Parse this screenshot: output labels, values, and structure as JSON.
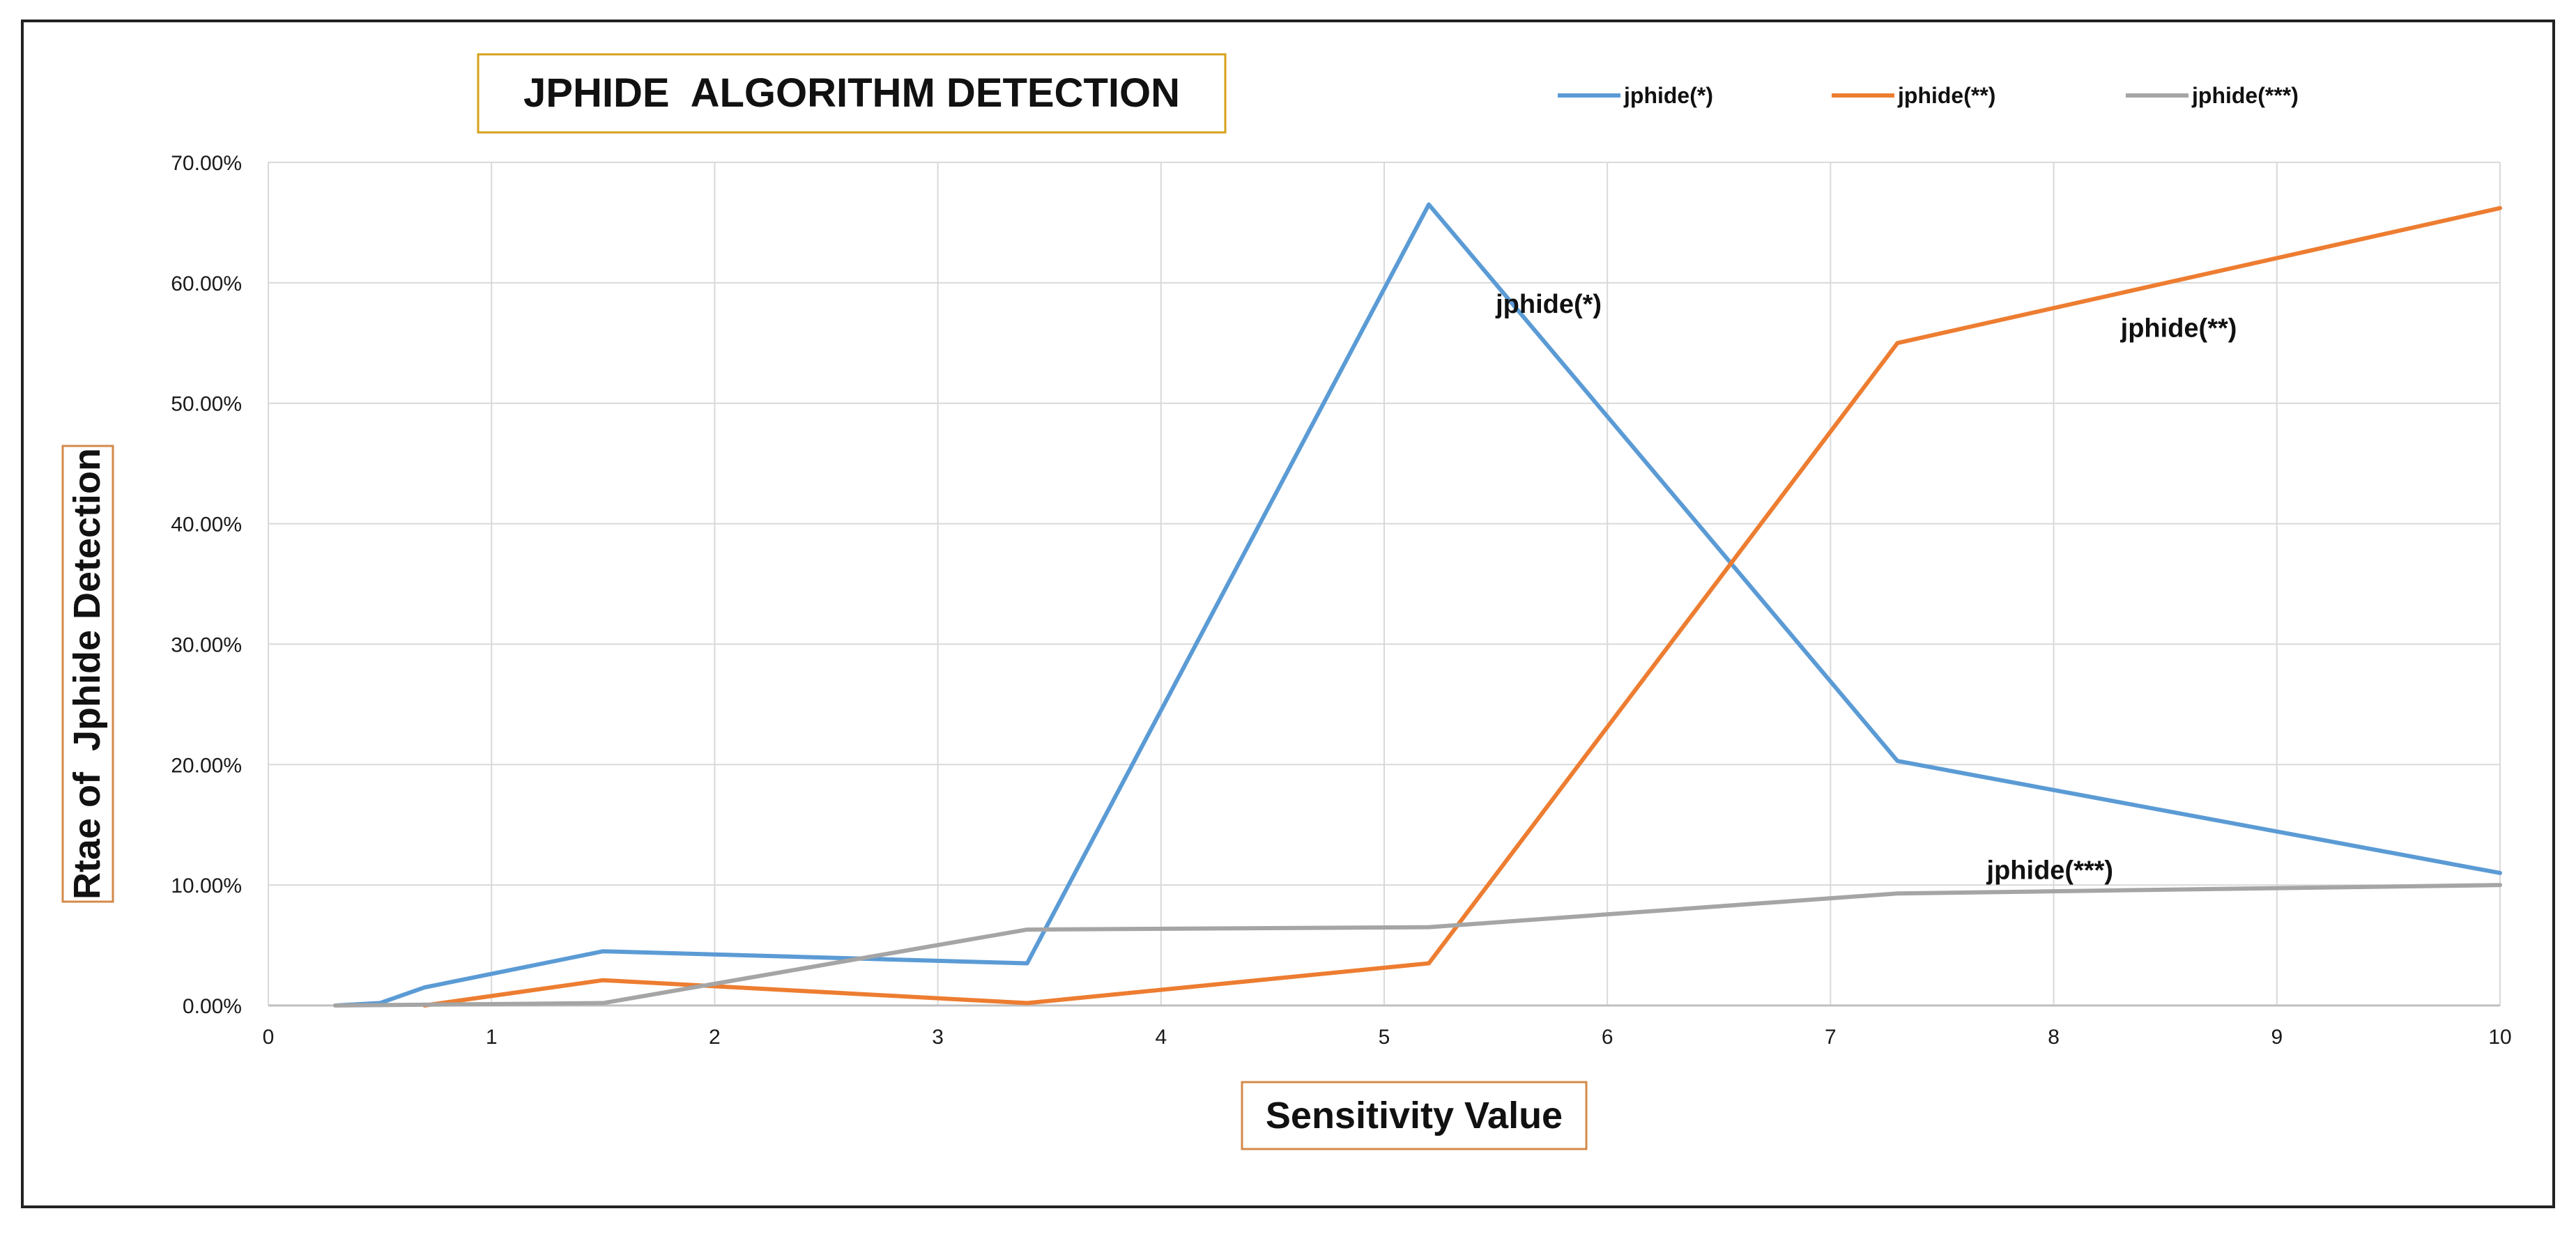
{
  "chart_data": {
    "type": "line",
    "title": "JPHIDE  ALGORITHM DETECTION",
    "xlabel": "Sensitivity Value",
    "ylabel": "Rtae of  Jphide Detection",
    "xlim": [
      0,
      10
    ],
    "ylim": [
      0,
      0.7
    ],
    "x_ticks": [
      "0",
      "1",
      "2",
      "3",
      "4",
      "5",
      "6",
      "7",
      "8",
      "9",
      "10"
    ],
    "y_ticks": [
      "0.00%",
      "10.00%",
      "20.00%",
      "30.00%",
      "40.00%",
      "50.00%",
      "60.00%",
      "70.00%"
    ],
    "grid": true,
    "legend_position": "top-right",
    "series": [
      {
        "name": "jphide(*)",
        "color": "#5B9BD5",
        "x": [
          0.3,
          0.5,
          0.7,
          1.5,
          3.4,
          5.2,
          7.3,
          10
        ],
        "y": [
          0.0,
          0.002,
          0.015,
          0.045,
          0.035,
          0.665,
          0.203,
          0.11
        ],
        "annotation": "jphide(*)",
        "annotation_at": [
          5.5,
          0.575
        ]
      },
      {
        "name": "jphide(**)",
        "color": "#ED7D31",
        "x": [
          0.7,
          1.5,
          3.4,
          5.2,
          7.3,
          10
        ],
        "y": [
          0.0,
          0.021,
          0.002,
          0.035,
          0.55,
          0.662
        ],
        "annotation": "jphide(**)",
        "annotation_at": [
          8.3,
          0.555
        ]
      },
      {
        "name": "jphide(***)",
        "color": "#A5A5A5",
        "x": [
          0.3,
          1.5,
          3.4,
          5.2,
          7.3,
          10
        ],
        "y": [
          0.0,
          0.002,
          0.063,
          0.065,
          0.093,
          0.1
        ],
        "annotation": "jphide(***)",
        "annotation_at": [
          7.7,
          0.105
        ]
      }
    ]
  }
}
